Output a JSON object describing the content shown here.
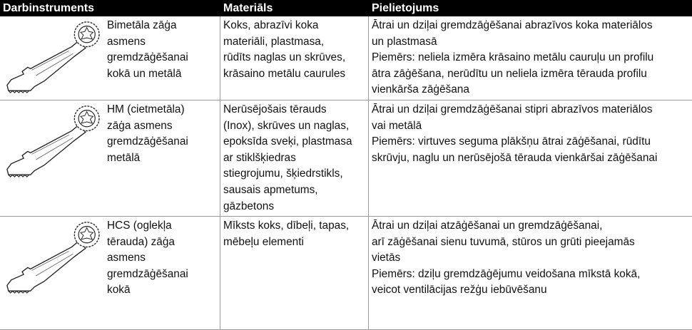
{
  "table": {
    "header": [
      "Darbinstruments",
      "Materiāls",
      "Pielietojums"
    ],
    "rows": [
      {
        "tool": [
          "Bimetāla zāģa",
          "asmens",
          "gremdzāģēšanai",
          "kokā un metālā"
        ],
        "materials": [
          "Koks, abrazīvi koka",
          "materiāli, plastmasa,",
          "rūdīts naglas un skrūves,",
          "krāsaino metālu caurules"
        ],
        "application": [
          "Ātrai un dziļai gremdzāģēšanai abrazīvos koka materiālos",
          "un plastmasā",
          "Piemērs: neliela izmēra krāsaino metālu cauruļu un profilu",
          "ātra zāģēšana, nerūdītu un neliela izmēra tērauda profilu",
          "vienkārša zāģēšana"
        ]
      },
      {
        "tool": [
          "HM (cietmetāla)",
          "zāģa asmens",
          "gremdzāģēšanai",
          "metālā"
        ],
        "materials": [
          "Nerūsējošais tērauds",
          "(Inox), skrūves un naglas,",
          "epoksīda sveķi, plastmasa",
          "ar stiklšķiedras",
          "stiegrojumu, šķiedrstikls,",
          "sausais apmetums,",
          "gāzbetons"
        ],
        "application": [
          "Ātrai un dziļai gremdzāģēšanai stipri abrazīvos materiālos",
          "vai metālā",
          "Piemērs: virtuves seguma plākšņu ātrai zāģēšanai, rūdītu",
          "skrūvju, naglu un nerūsējošā tērauda vienkāršai zāģēšanai"
        ]
      },
      {
        "tool": [
          "HCS (oglekļa",
          "tērauda) zāģa",
          "asmens",
          "gremdzāģēšanai",
          "kokā"
        ],
        "materials": [
          "Mīksts koks, dībeļi, tapas,",
          "mēbeļu elementi"
        ],
        "application": [
          "Ātrai un dziļai atzāģēšanai un gremdzāģēšanai,",
          "arī zāģēšanai sienu tuvumā, stūros un grūti pieejamās",
          "vietās",
          "Piemērs: dziļu gremdzāģējumu veidošana mīkstā kokā,",
          "veicot ventilācijas režģu iebūvēšanu"
        ]
      }
    ]
  }
}
